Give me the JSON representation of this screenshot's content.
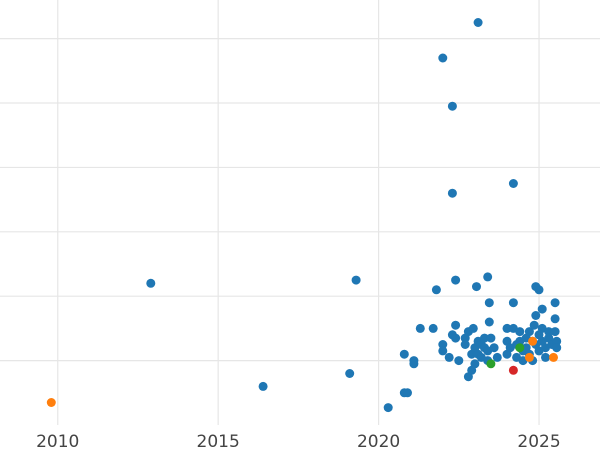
{
  "chart_data": {
    "type": "scatter",
    "title": "",
    "xlabel": "",
    "ylabel": "",
    "xlim": [
      2008.2,
      2026.9
    ],
    "ylim": [
      0,
      6.6
    ],
    "x_ticks": [
      2010,
      2015,
      2020,
      2025
    ],
    "x_tick_labels": [
      "2010",
      "2015",
      "2020",
      "2025"
    ],
    "y_gridlines": [
      1,
      2,
      3,
      4,
      5,
      6
    ],
    "grid": true,
    "legend": "none",
    "colors": {
      "blue": "#1f77b4",
      "orange": "#ff7f0e",
      "green": "#2ca02c",
      "red": "#d62728",
      "grid": "#e6e6e6"
    },
    "series": [
      {
        "color": "#1f77b4",
        "points": [
          [
            2012.9,
            2.2
          ],
          [
            2016.4,
            0.6
          ],
          [
            2019.1,
            0.8
          ],
          [
            2019.3,
            2.25
          ],
          [
            2020.3,
            0.27
          ],
          [
            2020.8,
            0.5
          ],
          [
            2020.9,
            0.5
          ],
          [
            2020.8,
            1.1
          ],
          [
            2021.1,
            0.95
          ],
          [
            2021.1,
            1.0
          ],
          [
            2021.3,
            1.5
          ],
          [
            2021.7,
            1.5
          ],
          [
            2021.8,
            2.1
          ],
          [
            2022.0,
            5.7
          ],
          [
            2022.0,
            1.25
          ],
          [
            2022.0,
            1.15
          ],
          [
            2022.2,
            1.05
          ],
          [
            2022.3,
            4.95
          ],
          [
            2022.3,
            3.6
          ],
          [
            2022.3,
            1.4
          ],
          [
            2022.4,
            2.25
          ],
          [
            2022.4,
            1.55
          ],
          [
            2022.4,
            1.35
          ],
          [
            2022.5,
            1.0
          ],
          [
            2022.7,
            1.35
          ],
          [
            2022.7,
            1.25
          ],
          [
            2022.8,
            1.45
          ],
          [
            2022.8,
            0.75
          ],
          [
            2022.9,
            1.1
          ],
          [
            2022.9,
            0.85
          ],
          [
            2022.95,
            1.5
          ],
          [
            2023.0,
            1.2
          ],
          [
            2023.0,
            0.95
          ],
          [
            2023.05,
            2.15
          ],
          [
            2023.1,
            6.25
          ],
          [
            2023.1,
            1.3
          ],
          [
            2023.1,
            1.1
          ],
          [
            2023.2,
            1.25
          ],
          [
            2023.2,
            1.05
          ],
          [
            2023.3,
            1.2
          ],
          [
            2023.3,
            1.35
          ],
          [
            2023.4,
            2.3
          ],
          [
            2023.4,
            1.15
          ],
          [
            2023.4,
            1.0
          ],
          [
            2023.45,
            1.9
          ],
          [
            2023.45,
            1.6
          ],
          [
            2023.5,
            1.35
          ],
          [
            2023.6,
            1.2
          ],
          [
            2023.7,
            1.05
          ],
          [
            2024.0,
            1.5
          ],
          [
            2024.0,
            1.3
          ],
          [
            2024.0,
            1.1
          ],
          [
            2024.1,
            1.2
          ],
          [
            2024.2,
            3.75
          ],
          [
            2024.2,
            1.9
          ],
          [
            2024.2,
            1.5
          ],
          [
            2024.3,
            1.25
          ],
          [
            2024.3,
            1.05
          ],
          [
            2024.4,
            1.45
          ],
          [
            2024.4,
            1.3
          ],
          [
            2024.5,
            1.15
          ],
          [
            2024.5,
            1.0
          ],
          [
            2024.6,
            1.35
          ],
          [
            2024.6,
            1.2
          ],
          [
            2024.7,
            1.45
          ],
          [
            2024.7,
            1.1
          ],
          [
            2024.8,
            1.3
          ],
          [
            2024.8,
            1.0
          ],
          [
            2024.85,
            1.55
          ],
          [
            2024.9,
            2.15
          ],
          [
            2024.9,
            1.7
          ],
          [
            2024.9,
            1.25
          ],
          [
            2025.0,
            2.1
          ],
          [
            2025.0,
            1.4
          ],
          [
            2025.0,
            1.15
          ],
          [
            2025.1,
            1.8
          ],
          [
            2025.1,
            1.5
          ],
          [
            2025.1,
            1.3
          ],
          [
            2025.2,
            1.2
          ],
          [
            2025.2,
            1.05
          ],
          [
            2025.3,
            1.45
          ],
          [
            2025.3,
            1.35
          ],
          [
            2025.4,
            1.25
          ],
          [
            2025.5,
            1.9
          ],
          [
            2025.5,
            1.65
          ],
          [
            2025.5,
            1.45
          ],
          [
            2025.55,
            1.3
          ],
          [
            2025.55,
            1.2
          ]
        ]
      },
      {
        "color": "#ff7f0e",
        "points": [
          [
            2009.8,
            0.35
          ],
          [
            2024.7,
            1.05
          ],
          [
            2024.8,
            1.3
          ],
          [
            2025.45,
            1.05
          ]
        ]
      },
      {
        "color": "#2ca02c",
        "points": [
          [
            2023.5,
            0.95
          ],
          [
            2024.4,
            1.2
          ]
        ]
      },
      {
        "color": "#d62728",
        "points": [
          [
            2024.2,
            0.85
          ]
        ]
      }
    ]
  }
}
